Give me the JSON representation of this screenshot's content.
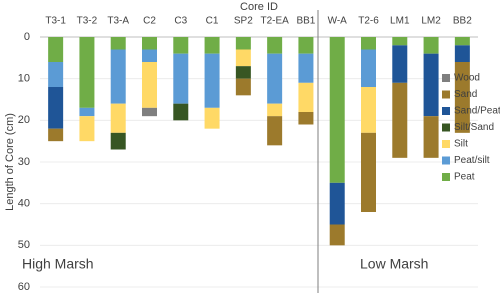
{
  "chart_data": {
    "type": "stacked-bar",
    "x_label": "Core ID",
    "y_label": "Length of Core  (cm)",
    "y_inverted": true,
    "categories": [
      "T3-1",
      "T3-2",
      "T3-A",
      "C2",
      "C3",
      "C1",
      "SP2",
      "T2-EA",
      "BB1",
      "W-A",
      "T2-6",
      "LM1",
      "LM2",
      "BB2"
    ],
    "series": [
      {
        "name": "Peat",
        "color": "#70ad47",
        "values": [
          6,
          17,
          3,
          3,
          4,
          4,
          3,
          4,
          4,
          35,
          3,
          2,
          4,
          2
        ]
      },
      {
        "name": "Peat/silt",
        "color": "#5b9bd5",
        "values": [
          6,
          2,
          13,
          3,
          12,
          13,
          0,
          12,
          7,
          0,
          9,
          0,
          0,
          0
        ]
      },
      {
        "name": "Silt",
        "color": "#ffd966",
        "values": [
          0,
          6,
          7,
          11,
          0,
          5,
          4,
          3,
          7,
          0,
          11,
          0,
          0,
          0
        ]
      },
      {
        "name": "Silt/Sand",
        "color": "#375623",
        "values": [
          0,
          0,
          4,
          0,
          4,
          0,
          3,
          0,
          0,
          0,
          0,
          0,
          0,
          0
        ]
      },
      {
        "name": "Sand/Peat",
        "color": "#1f5597",
        "values": [
          10,
          0,
          0,
          0,
          0,
          0,
          0,
          0,
          0,
          10,
          0,
          9,
          15,
          4
        ]
      },
      {
        "name": "Sand",
        "color": "#9c7a2c",
        "values": [
          3,
          0,
          0,
          0,
          0,
          0,
          4,
          7,
          3,
          5,
          19,
          18,
          10,
          17
        ]
      },
      {
        "name": "Wood",
        "color": "#7f7f7f",
        "values": [
          0,
          0,
          0,
          2,
          0,
          0,
          0,
          0,
          0,
          0,
          0,
          0,
          0,
          0
        ]
      }
    ],
    "ylim": [
      0,
      60
    ],
    "yticks": [
      0,
      10,
      20,
      30,
      40,
      50,
      60
    ],
    "grid": true,
    "legend_position": "right",
    "annotations": [
      "High Marsh",
      "Low Marsh"
    ]
  }
}
